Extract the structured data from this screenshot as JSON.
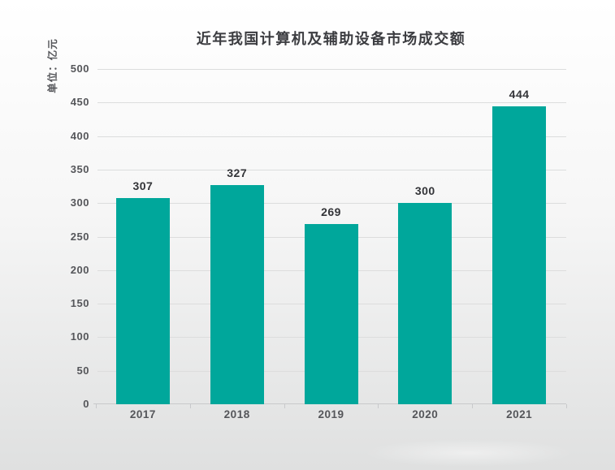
{
  "chart_data": {
    "type": "bar",
    "title": "近年我国计算机及辅助设备市场成交额",
    "unit_label": "单位：亿元",
    "categories": [
      "2017",
      "2018",
      "2019",
      "2020",
      "2021"
    ],
    "values": [
      307,
      327,
      269,
      300,
      444
    ],
    "xlabel": "",
    "ylabel": "单位：亿元",
    "ylim": [
      0,
      500
    ],
    "ytick_step": 50,
    "grid": true,
    "legend": false,
    "value_labels_shown": true
  },
  "colors": {
    "bar": "#00a79b",
    "title": "#3c3d41",
    "axis_text": "#55565a",
    "value_text": "#333438",
    "gridline": "#dcdddd",
    "axis_line": "#c8c9cb",
    "bg_top": "#ffffff",
    "bg_bottom": "#dfe0e0"
  }
}
